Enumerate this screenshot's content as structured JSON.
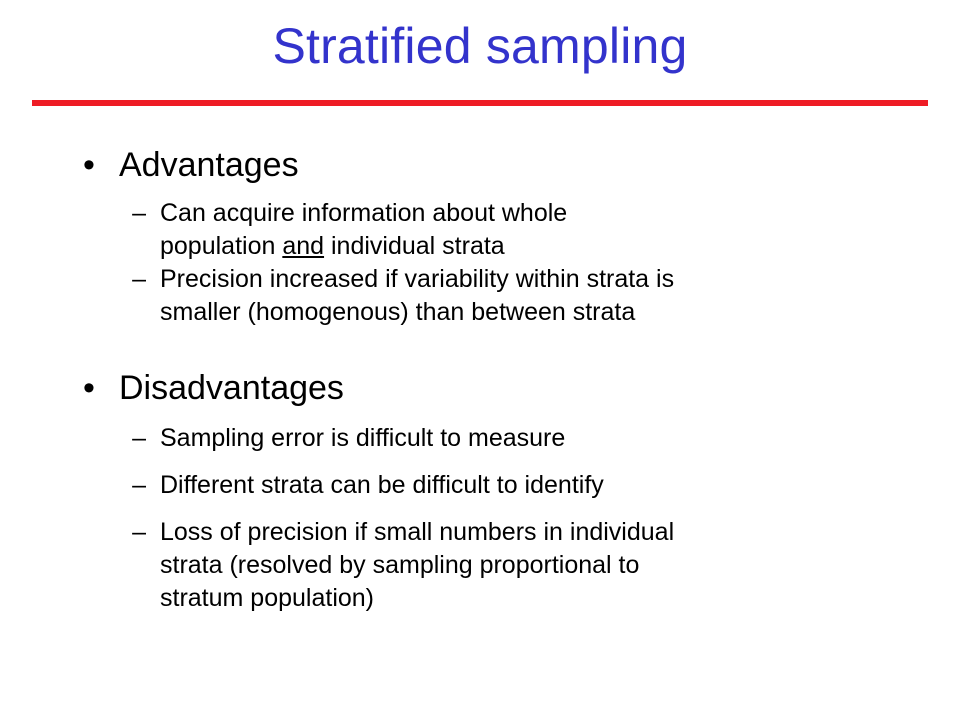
{
  "slide": {
    "title": "Stratified sampling",
    "rule_color": "#ee1c25",
    "title_color": "#3333cc"
  },
  "advantages": {
    "heading": "Advantages",
    "bullet": "•",
    "dash": "–",
    "items": [
      {
        "line1": "Can acquire information about whole",
        "line2_before": "population ",
        "line2_underlined": "and",
        "line2_after": " individual strata"
      },
      {
        "line1": "Precision increased if variability within strata is",
        "line2": "smaller (homogenous) than between strata"
      }
    ]
  },
  "disadvantages": {
    "heading": "Disadvantages",
    "bullet": "•",
    "dash": "–",
    "items": [
      {
        "text": "Sampling error is difficult to measure"
      },
      {
        "text": "Different strata can be difficult to identify"
      },
      {
        "line1": "Loss of precision if small numbers in individual",
        "line2": "strata (resolved by sampling proportional to",
        "line3": "stratum population)"
      }
    ]
  }
}
